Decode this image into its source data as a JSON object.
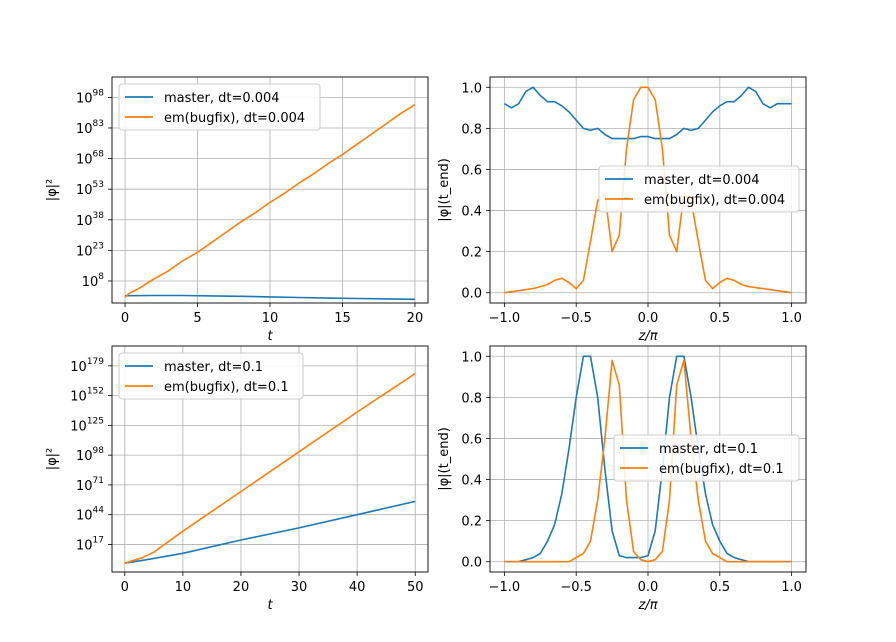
{
  "colors": {
    "series1": "#1f77b4",
    "series2": "#ff7f0e",
    "grid": "#b0b0b0"
  },
  "chart_data": [
    {
      "type": "line",
      "title": "",
      "xlabel": "t",
      "ylabel": "|φ|²",
      "yscale": "log10",
      "xlim": [
        -0.9,
        20.9
      ],
      "ylim": [
        -2.8,
        108
      ],
      "xticks": [
        0,
        5,
        10,
        15,
        20
      ],
      "xtick_labels": [
        "0",
        "5",
        "10",
        "15",
        "20"
      ],
      "yticks": [
        8,
        23,
        38,
        53,
        68,
        83,
        98
      ],
      "ytick_labels": [
        {
          "base": "10",
          "exp": "8"
        },
        {
          "base": "10",
          "exp": "23"
        },
        {
          "base": "10",
          "exp": "38"
        },
        {
          "base": "10",
          "exp": "53"
        },
        {
          "base": "10",
          "exp": "68"
        },
        {
          "base": "10",
          "exp": "83"
        },
        {
          "base": "10",
          "exp": "98"
        }
      ],
      "legend_loc": "top-left",
      "series": [
        {
          "name": "master, dt=0.004",
          "color": "#1f77b4",
          "x": [
            0,
            2,
            4,
            6,
            8,
            10,
            12,
            14,
            16,
            18,
            20
          ],
          "y": [
            0.8,
            0.9,
            0.9,
            0.7,
            0.5,
            0.2,
            -0.1,
            -0.4,
            -0.6,
            -0.8,
            -1.0
          ]
        },
        {
          "name": "em(bugfix), dt=0.004",
          "color": "#ff7f0e",
          "x": [
            0,
            0.3,
            1,
            2,
            3,
            4,
            5,
            6,
            7,
            8,
            9,
            10,
            11,
            12,
            13,
            14,
            15,
            16,
            17,
            18,
            19,
            20
          ],
          "y": [
            0,
            2,
            4.5,
            9,
            13,
            18,
            22,
            27,
            32,
            37,
            41.5,
            46.5,
            51,
            56,
            60.5,
            65.5,
            70,
            75,
            80,
            85,
            90,
            94.5
          ]
        }
      ]
    },
    {
      "type": "line",
      "title": "",
      "xlabel": "z/π",
      "ylabel": "|φ|(t_end)",
      "xlim": [
        -1.1,
        1.1
      ],
      "ylim": [
        -0.05,
        1.05
      ],
      "xticks": [
        -1.0,
        -0.5,
        0.0,
        0.5,
        1.0
      ],
      "xtick_labels": [
        "−1.0",
        "−0.5",
        "0.0",
        "0.5",
        "1.0"
      ],
      "yticks": [
        0.0,
        0.2,
        0.4,
        0.6,
        0.8,
        1.0
      ],
      "ytick_labels": [
        "0.0",
        "0.2",
        "0.4",
        "0.6",
        "0.8",
        "1.0"
      ],
      "legend_loc": "center-right",
      "series": [
        {
          "name": "master, dt=0.004",
          "color": "#1f77b4",
          "x": [
            -1.0,
            -0.95,
            -0.9,
            -0.85,
            -0.8,
            -0.75,
            -0.7,
            -0.65,
            -0.6,
            -0.55,
            -0.5,
            -0.45,
            -0.4,
            -0.35,
            -0.3,
            -0.25,
            -0.2,
            -0.15,
            -0.1,
            -0.05,
            0.0,
            0.05,
            0.1,
            0.15,
            0.2,
            0.25,
            0.3,
            0.35,
            0.4,
            0.45,
            0.5,
            0.55,
            0.6,
            0.65,
            0.7,
            0.75,
            0.8,
            0.85,
            0.9,
            0.95,
            1.0
          ],
          "y": [
            0.92,
            0.9,
            0.92,
            0.98,
            1.0,
            0.96,
            0.93,
            0.93,
            0.91,
            0.88,
            0.84,
            0.8,
            0.79,
            0.8,
            0.77,
            0.75,
            0.75,
            0.75,
            0.75,
            0.76,
            0.76,
            0.75,
            0.75,
            0.75,
            0.77,
            0.8,
            0.79,
            0.8,
            0.84,
            0.88,
            0.91,
            0.93,
            0.93,
            0.96,
            1.0,
            0.98,
            0.92,
            0.9,
            0.92,
            0.92,
            0.92
          ]
        },
        {
          "name": "em(bugfix), dt=0.004",
          "color": "#ff7f0e",
          "x": [
            -1.0,
            -0.9,
            -0.8,
            -0.7,
            -0.65,
            -0.6,
            -0.55,
            -0.5,
            -0.45,
            -0.4,
            -0.35,
            -0.3,
            -0.25,
            -0.2,
            -0.15,
            -0.1,
            -0.05,
            0.0,
            0.05,
            0.1,
            0.15,
            0.2,
            0.25,
            0.3,
            0.35,
            0.4,
            0.45,
            0.5,
            0.55,
            0.6,
            0.65,
            0.7,
            0.8,
            0.9,
            1.0
          ],
          "y": [
            0.0,
            0.01,
            0.02,
            0.04,
            0.06,
            0.07,
            0.05,
            0.02,
            0.06,
            0.25,
            0.45,
            0.48,
            0.2,
            0.28,
            0.7,
            0.94,
            1.0,
            1.0,
            0.94,
            0.7,
            0.28,
            0.2,
            0.48,
            0.45,
            0.25,
            0.06,
            0.02,
            0.05,
            0.07,
            0.06,
            0.04,
            0.03,
            0.02,
            0.01,
            0.0
          ]
        }
      ]
    },
    {
      "type": "line",
      "title": "",
      "xlabel": "t",
      "ylabel": "|φ|²",
      "yscale": "log10",
      "xlim": [
        -2.2,
        52.2
      ],
      "ylim": [
        -8,
        197
      ],
      "xticks": [
        0,
        10,
        20,
        30,
        40,
        50
      ],
      "xtick_labels": [
        "0",
        "10",
        "20",
        "30",
        "40",
        "50"
      ],
      "yticks": [
        17,
        44,
        71,
        98,
        125,
        152,
        179
      ],
      "ytick_labels": [
        {
          "base": "10",
          "exp": "17"
        },
        {
          "base": "10",
          "exp": "44"
        },
        {
          "base": "10",
          "exp": "71"
        },
        {
          "base": "10",
          "exp": "98"
        },
        {
          "base": "10",
          "exp": "125"
        },
        {
          "base": "10",
          "exp": "152"
        },
        {
          "base": "10",
          "exp": "179"
        }
      ],
      "legend_loc": "top-left",
      "series": [
        {
          "name": "master, dt=0.1",
          "color": "#1f77b4",
          "x": [
            0,
            3,
            10,
            20,
            30,
            40,
            50
          ],
          "y": [
            0,
            2.5,
            9,
            21,
            32,
            44,
            56
          ]
        },
        {
          "name": "em(bugfix), dt=0.1",
          "color": "#ff7f0e",
          "x": [
            0,
            3,
            5,
            10,
            20,
            30,
            40,
            50
          ],
          "y": [
            0,
            5,
            10,
            29,
            65,
            101,
            137,
            172
          ]
        }
      ]
    },
    {
      "type": "line",
      "title": "",
      "xlabel": "z/π",
      "ylabel": "|φ|(t_end)",
      "xlim": [
        -1.1,
        1.1
      ],
      "ylim": [
        -0.05,
        1.05
      ],
      "xticks": [
        -1.0,
        -0.5,
        0.0,
        0.5,
        1.0
      ],
      "xtick_labels": [
        "−1.0",
        "−0.5",
        "0.0",
        "0.5",
        "1.0"
      ],
      "yticks": [
        0.0,
        0.2,
        0.4,
        0.6,
        0.8,
        1.0
      ],
      "ytick_labels": [
        "0.0",
        "0.2",
        "0.4",
        "0.6",
        "0.8",
        "1.0"
      ],
      "legend_loc": "center-right",
      "series": [
        {
          "name": "master, dt=0.1",
          "color": "#1f77b4",
          "x": [
            -1.0,
            -0.9,
            -0.85,
            -0.8,
            -0.75,
            -0.7,
            -0.65,
            -0.6,
            -0.55,
            -0.5,
            -0.45,
            -0.4,
            -0.35,
            -0.3,
            -0.25,
            -0.2,
            -0.15,
            -0.1,
            -0.05,
            0.0,
            0.05,
            0.1,
            0.15,
            0.2,
            0.25,
            0.3,
            0.35,
            0.4,
            0.45,
            0.5,
            0.55,
            0.6,
            0.65,
            0.7,
            0.75,
            0.8,
            0.85,
            0.9,
            1.0
          ],
          "y": [
            0.0,
            0.0,
            0.01,
            0.02,
            0.04,
            0.1,
            0.18,
            0.33,
            0.55,
            0.8,
            1.0,
            1.0,
            0.8,
            0.45,
            0.15,
            0.03,
            0.02,
            0.02,
            0.02,
            0.03,
            0.15,
            0.45,
            0.8,
            1.0,
            1.0,
            0.8,
            0.55,
            0.33,
            0.18,
            0.1,
            0.04,
            0.02,
            0.01,
            0.0,
            0.0,
            0.0,
            0.0,
            0.0,
            0.0
          ]
        },
        {
          "name": "em(bugfix), dt=0.1",
          "color": "#ff7f0e",
          "x": [
            -1.0,
            -0.8,
            -0.6,
            -0.55,
            -0.5,
            -0.45,
            -0.4,
            -0.35,
            -0.3,
            -0.25,
            -0.2,
            -0.15,
            -0.1,
            -0.05,
            0.0,
            0.05,
            0.1,
            0.15,
            0.2,
            0.25,
            0.3,
            0.35,
            0.4,
            0.45,
            0.5,
            0.55,
            0.6,
            0.8,
            1.0
          ],
          "y": [
            0.0,
            0.0,
            0.0,
            0.0,
            0.02,
            0.04,
            0.1,
            0.3,
            0.6,
            0.98,
            0.86,
            0.3,
            0.05,
            0.01,
            0.0,
            0.01,
            0.05,
            0.3,
            0.86,
            0.98,
            0.6,
            0.3,
            0.1,
            0.04,
            0.02,
            0.0,
            0.0,
            0.0,
            0.0
          ]
        }
      ]
    }
  ]
}
